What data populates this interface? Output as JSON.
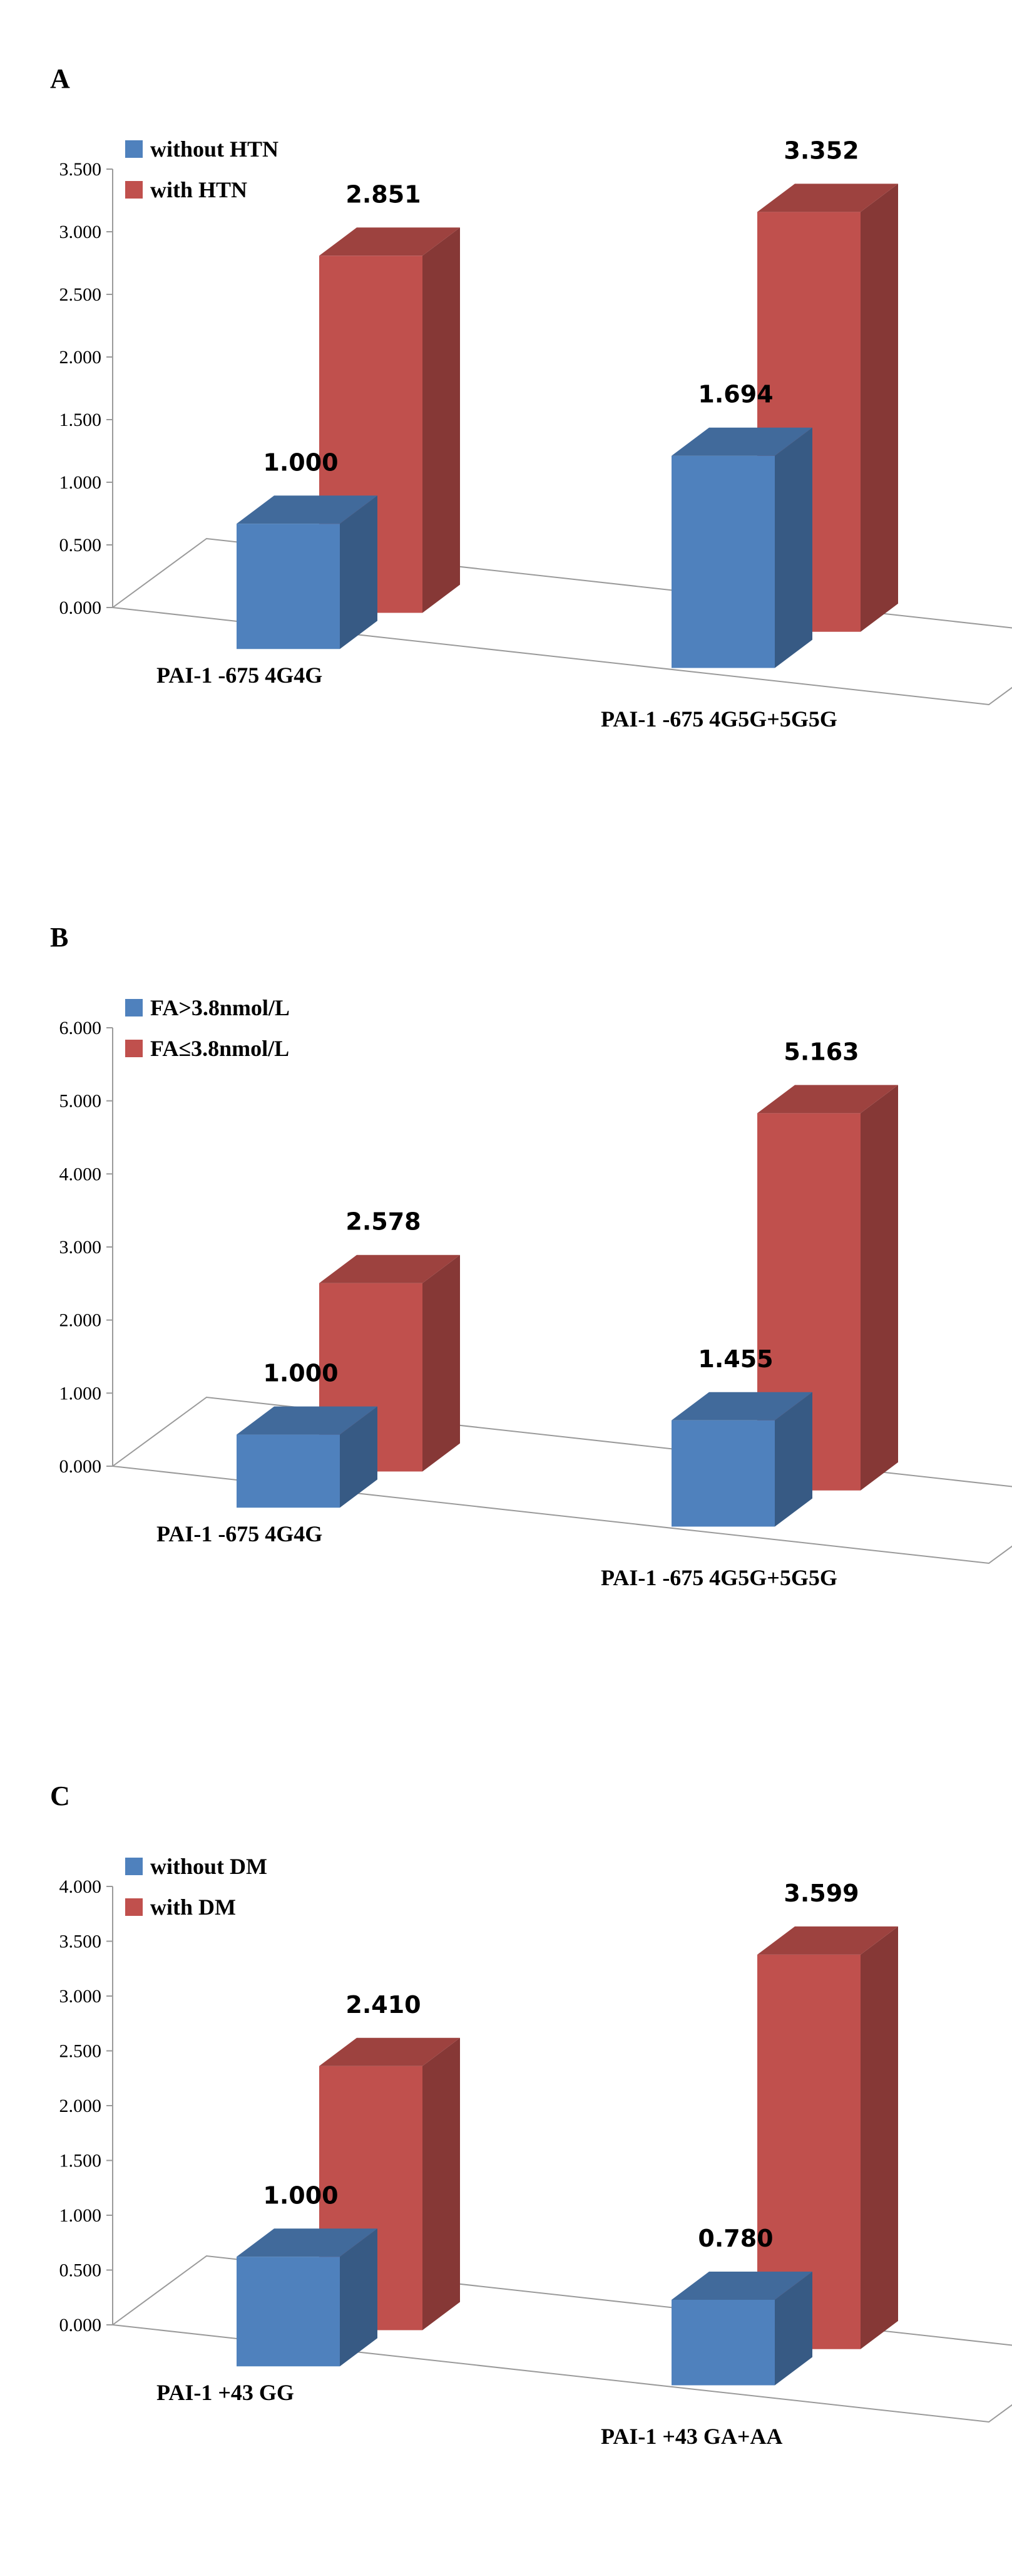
{
  "chart_data": [
    {
      "panel_label": "A",
      "type": "bar",
      "categories": [
        "PAI-1 -675 4G4G",
        "PAI-1 -675 4G5G+5G5G"
      ],
      "series": [
        {
          "name": "without HTN",
          "values": [
            1.0,
            1.694
          ],
          "color": "#4f81bd"
        },
        {
          "name": "with HTN",
          "values": [
            2.851,
            3.352
          ],
          "color": "#c0504d"
        }
      ],
      "value_labels": [
        [
          "1.000",
          "1.694"
        ],
        [
          "2.851",
          "3.352"
        ]
      ],
      "yticks": [
        "0.000",
        "0.500",
        "1.000",
        "1.500",
        "2.000",
        "2.500",
        "3.000",
        "3.500"
      ],
      "ylim": [
        0,
        3.5
      ],
      "legend": "top-left",
      "grid": false
    },
    {
      "panel_label": "B",
      "type": "bar",
      "categories": [
        "PAI-1 -675 4G4G",
        "PAI-1 -675 4G5G+5G5G"
      ],
      "series": [
        {
          "name": "FA>3.8nmol/L",
          "values": [
            1.0,
            1.455
          ],
          "color": "#4f81bd"
        },
        {
          "name": "FA≤3.8nmol/L",
          "values": [
            2.578,
            5.163
          ],
          "color": "#c0504d"
        }
      ],
      "value_labels": [
        [
          "1.000",
          "1.455"
        ],
        [
          "2.578",
          "5.163"
        ]
      ],
      "yticks": [
        "0.000",
        "1.000",
        "2.000",
        "3.000",
        "4.000",
        "5.000",
        "6.000"
      ],
      "ylim": [
        0,
        6
      ],
      "legend": "top-left",
      "grid": false
    },
    {
      "panel_label": "C",
      "type": "bar",
      "categories": [
        "PAI-1 +43 GG",
        "PAI-1 +43 GA+AA"
      ],
      "series": [
        {
          "name": "without DM",
          "values": [
            1.0,
            0.78
          ],
          "color": "#4f81bd"
        },
        {
          "name": "with DM",
          "values": [
            2.41,
            3.599
          ],
          "color": "#c0504d"
        }
      ],
      "value_labels": [
        [
          "1.000",
          "0.780"
        ],
        [
          "2.410",
          "3.599"
        ]
      ],
      "yticks": [
        "0.000",
        "0.500",
        "1.000",
        "1.500",
        "2.000",
        "2.500",
        "3.000",
        "3.500",
        "4.000"
      ],
      "ylim": [
        0,
        4
      ],
      "legend": "top-left",
      "grid": false
    }
  ]
}
